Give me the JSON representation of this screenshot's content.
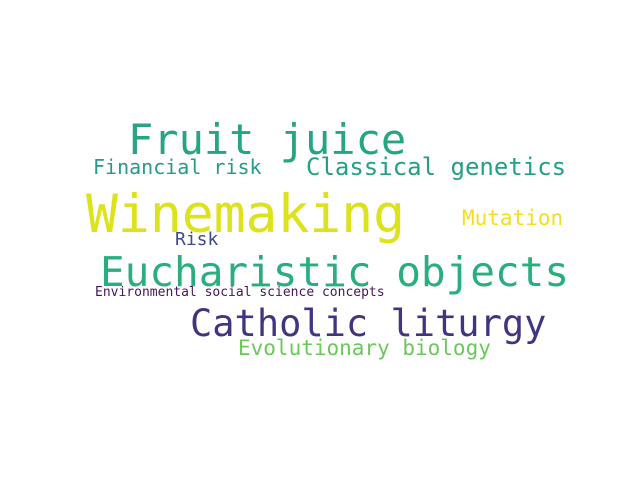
{
  "words": [
    {
      "text": "Fruit juice",
      "color": "#26a584"
    },
    {
      "text": "Financial risk",
      "color": "#2a988a"
    },
    {
      "text": "Classical genetics",
      "color": "#23a085"
    },
    {
      "text": "Winemaking",
      "color": "#dde31a"
    },
    {
      "text": "Mutation",
      "color": "#f0e020"
    },
    {
      "text": "Risk",
      "color": "#3d4b8a"
    },
    {
      "text": "Eucharistic objects",
      "color": "#2aae7d"
    },
    {
      "text": "Environmental social science concepts",
      "color": "#47165a"
    },
    {
      "text": "Catholic liturgy",
      "color": "#403582"
    },
    {
      "text": "Evolutionary biology",
      "color": "#6bc85a"
    }
  ]
}
